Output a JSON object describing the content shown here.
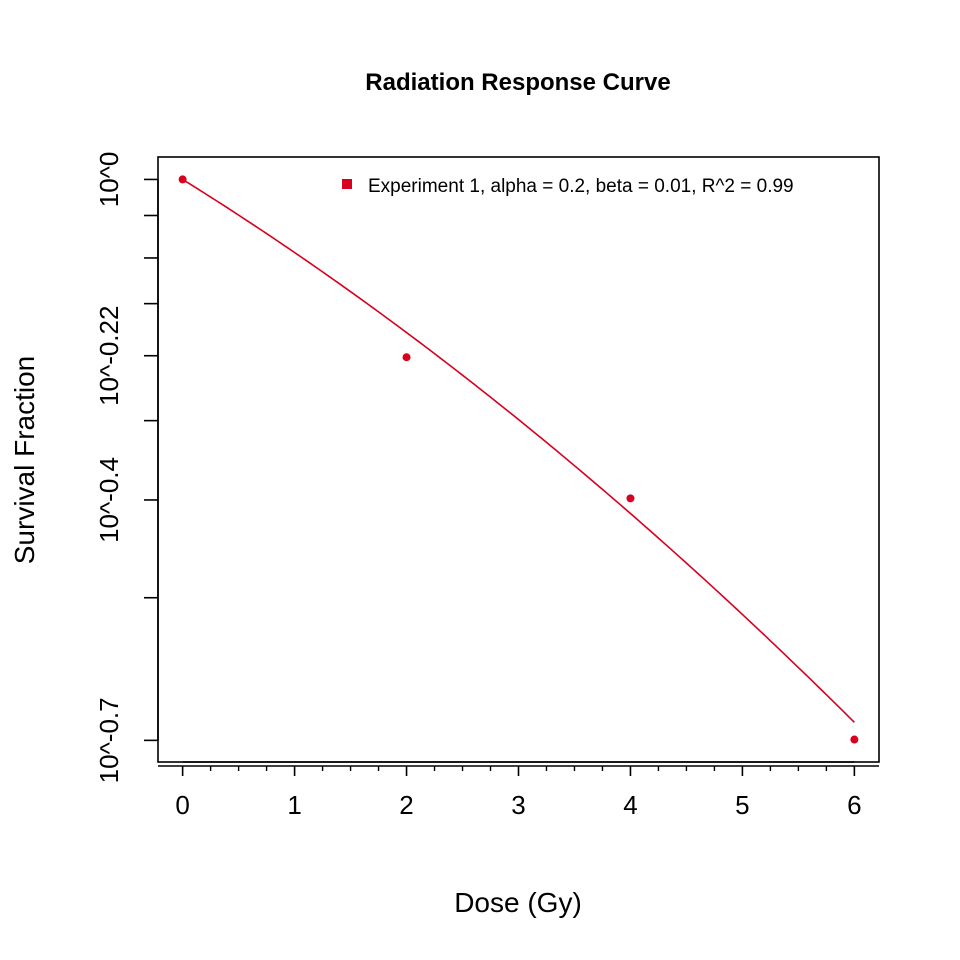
{
  "chart_data": {
    "type": "scatter",
    "title": "Radiation Response Curve",
    "xlabel": "Dose (Gy)",
    "ylabel": "Survival Fraction",
    "xlim": [
      -0.22,
      6.22
    ],
    "ylim_log10": [
      -0.727,
      0.028
    ],
    "y_scale": "log10",
    "grid": false,
    "legend_position": "top-right",
    "colors": {
      "series": "#d7001f",
      "axis": "#000000"
    },
    "x_ticks": [
      {
        "value": 0,
        "label": "0"
      },
      {
        "value": 1,
        "label": "1"
      },
      {
        "value": 2,
        "label": "2"
      },
      {
        "value": 3,
        "label": "3"
      },
      {
        "value": 4,
        "label": "4"
      },
      {
        "value": 5,
        "label": "5"
      },
      {
        "value": 6,
        "label": "6"
      }
    ],
    "x_minor_ticks": [
      0.25,
      0.5,
      0.75,
      1.25,
      1.5,
      1.75,
      2.25,
      2.5,
      2.75,
      3.25,
      3.5,
      3.75,
      4.25,
      4.5,
      4.75,
      5.25,
      5.5,
      5.75
    ],
    "y_ticks": [
      {
        "log10": 0,
        "label": "10^0"
      },
      {
        "log10": -0.22,
        "label": "10^-0.22"
      },
      {
        "log10": -0.4,
        "label": "10^-0.4"
      },
      {
        "log10": -0.7,
        "label": "10^-0.7"
      }
    ],
    "y_minor_ticks_log10": [
      -0.045,
      -0.098,
      -0.155,
      -0.301,
      -0.522
    ],
    "series": [
      {
        "name": "Experiment 1, alpha = 0.2, beta = 0.01, R^2 = 0.99",
        "points": [
          {
            "x": 0,
            "y": 1.0
          },
          {
            "x": 2,
            "y": 0.6
          },
          {
            "x": 4,
            "y": 0.4
          },
          {
            "x": 6,
            "y": 0.2
          }
        ],
        "fit": {
          "model": "linear-quadratic",
          "alpha": 0.2,
          "beta": 0.01,
          "x_range": [
            0,
            6
          ]
        }
      }
    ]
  }
}
